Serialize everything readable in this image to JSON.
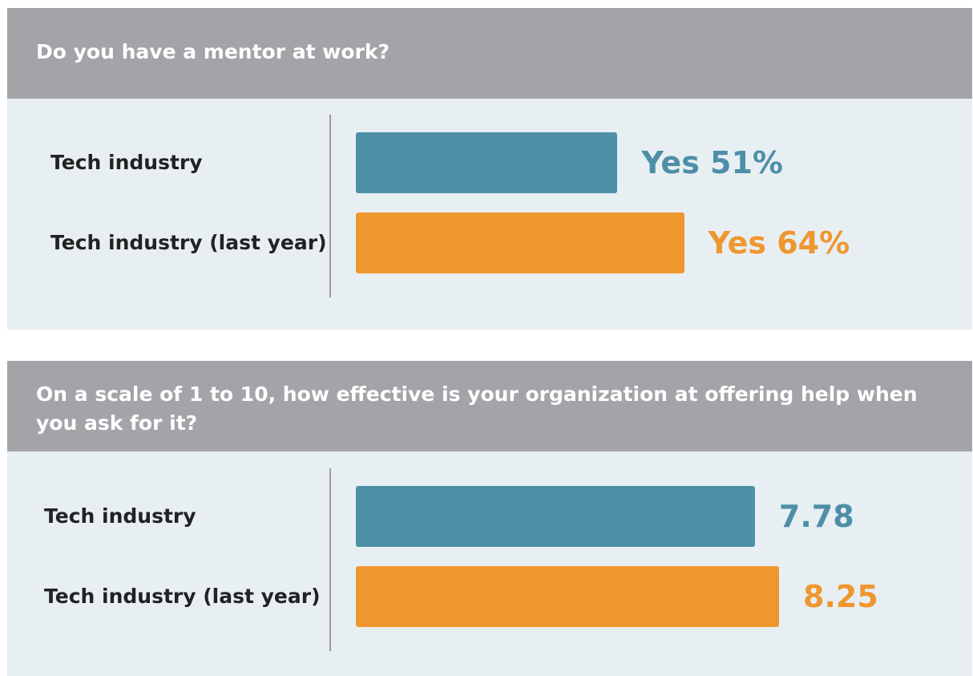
{
  "chart_data": [
    {
      "type": "bar",
      "orientation": "horizontal",
      "title": "Do you have a mentor at work?",
      "categories": [
        "Tech industry",
        "Tech industry (last year)"
      ],
      "values": [
        51,
        64
      ],
      "value_labels": [
        "Yes 51%",
        "Yes 64%"
      ],
      "colors": [
        "#4e8fa8",
        "#ef972f"
      ],
      "xlim": [
        0,
        100
      ]
    },
    {
      "type": "bar",
      "orientation": "horizontal",
      "title": "On a scale of 1 to 10, how effective is your organization at offering help when you ask for it?",
      "categories": [
        "Tech industry",
        "Tech industry (last year)"
      ],
      "values": [
        7.78,
        8.25
      ],
      "colors": [
        "#4e8fa8",
        "#ef972f"
      ],
      "xlim": [
        0,
        10
      ]
    }
  ]
}
